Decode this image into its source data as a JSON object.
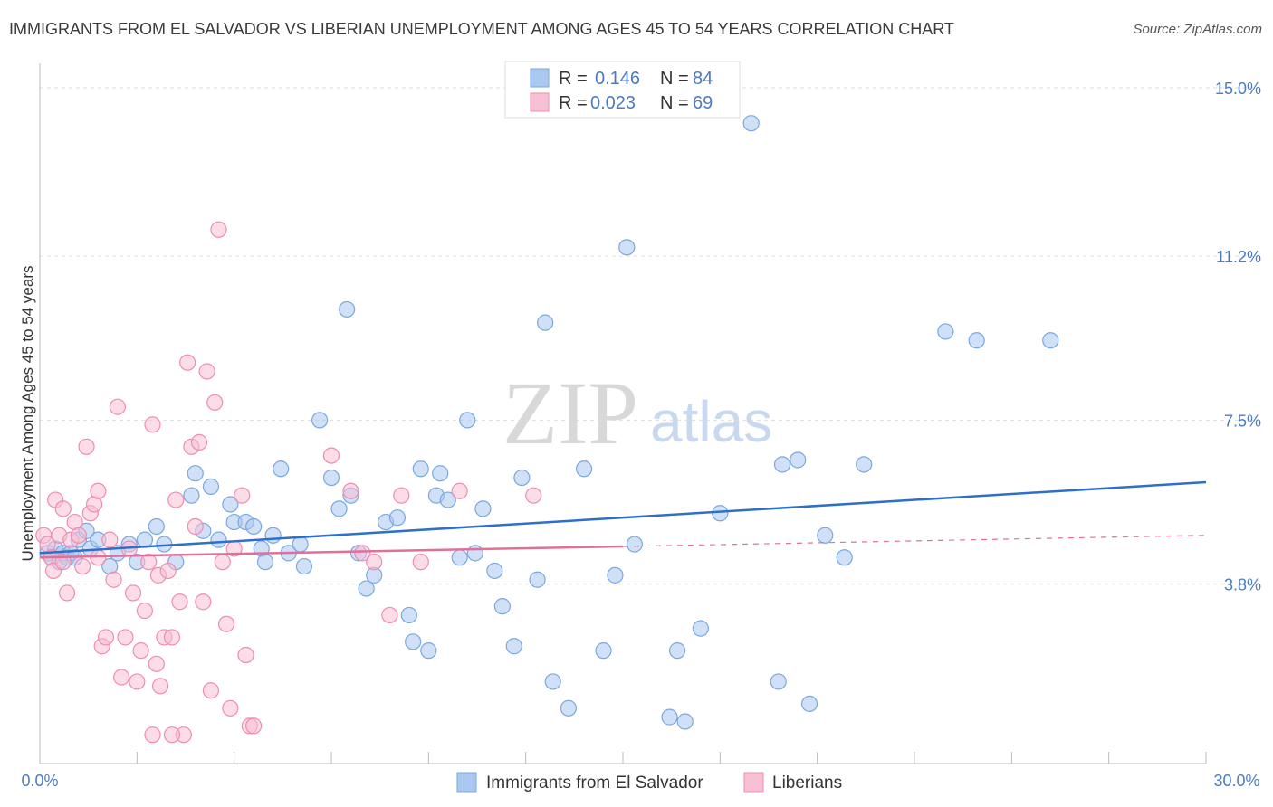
{
  "title": "IMMIGRANTS FROM EL SALVADOR VS LIBERIAN UNEMPLOYMENT AMONG AGES 45 TO 54 YEARS CORRELATION CHART",
  "source": "Source: ZipAtlas.com",
  "watermark": {
    "zip": "ZIP",
    "atlas": "atlas"
  },
  "colors": {
    "blue": "#7aa7e0",
    "blue_fill": "#aac8f0",
    "blue_line": "#2e6fc9",
    "pink": "#f08cb0",
    "pink_fill": "#f8c0d4",
    "pink_line": "#e0709a",
    "tick_text": "#4a7cc4"
  },
  "legend": {
    "rows": [
      {
        "r_label": "R =",
        "r_value": "0.146",
        "n_label": "N =",
        "n_value": "84"
      },
      {
        "r_label": "R =",
        "r_value": "0.023",
        "n_label": "N =",
        "n_value": "69"
      }
    ]
  },
  "bottom_legend": [
    "Immigrants from El Salvador",
    "Liberians"
  ],
  "chart_data": {
    "type": "scatter",
    "title": "IMMIGRANTS FROM EL SALVADOR VS LIBERIAN UNEMPLOYMENT AMONG AGES 45 TO 54 YEARS CORRELATION CHART",
    "xlabel": "",
    "ylabel": "Unemployment Among Ages 45 to 54 years",
    "xlim": [
      0,
      30
    ],
    "ylim": [
      0,
      15.5
    ],
    "x_tick_labels": [
      {
        "value": 0,
        "label": "0.0%"
      },
      {
        "value": 30,
        "label": "30.0%"
      }
    ],
    "y_ticks": [
      {
        "value": 3.8,
        "label": "3.8%"
      },
      {
        "value": 7.5,
        "label": "7.5%"
      },
      {
        "value": 11.2,
        "label": "11.2%"
      },
      {
        "value": 15.0,
        "label": "15.0%"
      }
    ],
    "series": [
      {
        "name": "Immigrants from El Salvador",
        "r": 0.146,
        "n": 84,
        "trend": {
          "x0": 0,
          "y0": 4.5,
          "x1": 30,
          "y1": 6.1,
          "dashed_from": null
        },
        "points": [
          [
            0.2,
            4.5
          ],
          [
            0.3,
            4.4
          ],
          [
            0.4,
            4.6
          ],
          [
            0.5,
            4.3
          ],
          [
            0.6,
            4.5
          ],
          [
            0.7,
            4.4
          ],
          [
            0.8,
            4.5
          ],
          [
            0.9,
            4.4
          ],
          [
            1.0,
            4.8
          ],
          [
            1.2,
            5.0
          ],
          [
            1.3,
            4.6
          ],
          [
            1.5,
            4.8
          ],
          [
            1.8,
            4.2
          ],
          [
            2.0,
            4.5
          ],
          [
            2.3,
            4.7
          ],
          [
            2.5,
            4.3
          ],
          [
            2.7,
            4.8
          ],
          [
            3.0,
            5.1
          ],
          [
            3.2,
            4.7
          ],
          [
            3.5,
            4.3
          ],
          [
            3.9,
            5.8
          ],
          [
            4.0,
            6.3
          ],
          [
            4.2,
            5.0
          ],
          [
            4.4,
            6.0
          ],
          [
            4.6,
            4.8
          ],
          [
            4.9,
            5.6
          ],
          [
            5.0,
            5.2
          ],
          [
            5.3,
            5.2
          ],
          [
            5.5,
            5.1
          ],
          [
            5.7,
            4.6
          ],
          [
            5.8,
            4.3
          ],
          [
            6.0,
            4.9
          ],
          [
            6.2,
            6.4
          ],
          [
            6.4,
            4.5
          ],
          [
            6.7,
            4.7
          ],
          [
            6.8,
            4.2
          ],
          [
            7.2,
            7.5
          ],
          [
            7.5,
            6.2
          ],
          [
            7.7,
            5.5
          ],
          [
            7.9,
            10.0
          ],
          [
            8.0,
            5.8
          ],
          [
            8.2,
            4.5
          ],
          [
            8.4,
            3.7
          ],
          [
            8.6,
            4.0
          ],
          [
            8.9,
            5.2
          ],
          [
            9.2,
            5.3
          ],
          [
            9.5,
            3.1
          ],
          [
            9.6,
            2.5
          ],
          [
            9.8,
            6.4
          ],
          [
            10.0,
            2.3
          ],
          [
            10.2,
            5.8
          ],
          [
            10.3,
            6.3
          ],
          [
            10.5,
            5.7
          ],
          [
            10.8,
            4.4
          ],
          [
            11.0,
            7.5
          ],
          [
            11.2,
            4.5
          ],
          [
            11.4,
            5.5
          ],
          [
            11.7,
            4.1
          ],
          [
            11.9,
            3.3
          ],
          [
            12.2,
            2.4
          ],
          [
            12.4,
            6.2
          ],
          [
            12.8,
            3.9
          ],
          [
            13.0,
            9.7
          ],
          [
            13.2,
            1.6
          ],
          [
            13.6,
            1.0
          ],
          [
            14.0,
            6.4
          ],
          [
            14.5,
            2.3
          ],
          [
            14.8,
            4.0
          ],
          [
            15.1,
            11.4
          ],
          [
            15.3,
            4.7
          ],
          [
            16.2,
            0.8
          ],
          [
            16.4,
            2.3
          ],
          [
            16.6,
            0.7
          ],
          [
            17.0,
            2.8
          ],
          [
            17.5,
            5.4
          ],
          [
            18.3,
            14.2
          ],
          [
            19.0,
            1.6
          ],
          [
            19.1,
            6.5
          ],
          [
            19.5,
            6.6
          ],
          [
            19.8,
            1.1
          ],
          [
            20.2,
            4.9
          ],
          [
            20.7,
            4.4
          ],
          [
            21.2,
            6.5
          ],
          [
            23.3,
            9.5
          ],
          [
            24.1,
            9.3
          ],
          [
            26.0,
            9.3
          ]
        ]
      },
      {
        "name": "Liberians",
        "r": 0.023,
        "n": 69,
        "trend": {
          "x0": 0,
          "y0": 4.4,
          "x1": 30,
          "y1": 4.9,
          "dashed_from": 15.0
        },
        "points": [
          [
            0.1,
            4.9
          ],
          [
            0.2,
            4.7
          ],
          [
            0.3,
            4.4
          ],
          [
            0.35,
            4.1
          ],
          [
            0.4,
            5.7
          ],
          [
            0.5,
            4.9
          ],
          [
            0.6,
            5.5
          ],
          [
            0.7,
            3.6
          ],
          [
            0.8,
            4.8
          ],
          [
            0.9,
            5.2
          ],
          [
            1.0,
            4.9
          ],
          [
            1.1,
            4.2
          ],
          [
            1.2,
            6.9
          ],
          [
            1.3,
            5.4
          ],
          [
            1.4,
            5.6
          ],
          [
            1.5,
            5.9
          ],
          [
            1.6,
            2.4
          ],
          [
            1.7,
            2.6
          ],
          [
            1.8,
            4.8
          ],
          [
            1.9,
            3.9
          ],
          [
            2.0,
            7.8
          ],
          [
            2.1,
            1.7
          ],
          [
            2.2,
            2.6
          ],
          [
            2.3,
            4.6
          ],
          [
            2.4,
            3.6
          ],
          [
            2.5,
            1.6
          ],
          [
            2.6,
            2.3
          ],
          [
            2.7,
            3.2
          ],
          [
            2.8,
            4.3
          ],
          [
            2.9,
            7.4
          ],
          [
            3.0,
            2.0
          ],
          [
            3.05,
            4.0
          ],
          [
            3.1,
            1.5
          ],
          [
            3.2,
            2.6
          ],
          [
            3.3,
            4.1
          ],
          [
            3.4,
            2.6
          ],
          [
            3.5,
            5.7
          ],
          [
            3.6,
            3.4
          ],
          [
            3.7,
            0.4
          ],
          [
            3.8,
            8.8
          ],
          [
            3.9,
            6.9
          ],
          [
            4.0,
            5.1
          ],
          [
            4.1,
            7.0
          ],
          [
            4.2,
            3.4
          ],
          [
            4.3,
            8.6
          ],
          [
            4.4,
            1.4
          ],
          [
            4.5,
            7.9
          ],
          [
            4.6,
            11.8
          ],
          [
            4.7,
            4.3
          ],
          [
            4.8,
            2.9
          ],
          [
            4.9,
            1.0
          ],
          [
            5.0,
            4.6
          ],
          [
            5.2,
            5.8
          ],
          [
            5.3,
            2.2
          ],
          [
            5.4,
            0.6
          ],
          [
            5.5,
            0.6
          ],
          [
            7.5,
            6.7
          ],
          [
            8.0,
            5.9
          ],
          [
            8.3,
            4.5
          ],
          [
            8.6,
            4.3
          ],
          [
            9.0,
            3.1
          ],
          [
            9.3,
            5.8
          ],
          [
            9.8,
            4.3
          ],
          [
            10.8,
            5.9
          ],
          [
            12.7,
            5.8
          ],
          [
            3.4,
            0.4
          ],
          [
            2.9,
            0.4
          ],
          [
            1.5,
            4.4
          ],
          [
            0.6,
            4.3
          ]
        ]
      }
    ]
  }
}
